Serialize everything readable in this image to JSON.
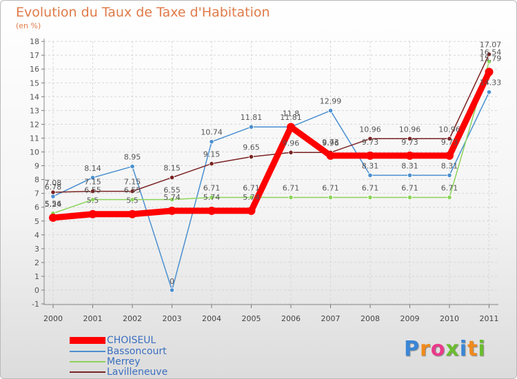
{
  "title": "Evolution du Taux de Taxe d'Habitation",
  "subtitle": "(en %)",
  "logo_text": "Proxiti",
  "chart_data": {
    "type": "line",
    "categories": [
      "2000",
      "2001",
      "2002",
      "2003",
      "2004",
      "2005",
      "2006",
      "2007",
      "2008",
      "2009",
      "2010",
      "2011"
    ],
    "ylim": [
      -1,
      18
    ],
    "yticks": [
      -1,
      0,
      1,
      2,
      3,
      4,
      5,
      6,
      7,
      8,
      9,
      10,
      11,
      12,
      13,
      14,
      15,
      16,
      17,
      18
    ],
    "grid": true,
    "series": [
      {
        "name": "CHOISEUL",
        "color": "#ff0000",
        "values": [
          5.24,
          5.5,
          5.5,
          5.74,
          5.74,
          5.74,
          11.8,
          9.73,
          9.73,
          9.73,
          9.73,
          15.79
        ],
        "labels": [
          "5.24",
          "5.5",
          "5.5",
          "5.74",
          "5.74",
          "5.74",
          "11.8",
          "9.73",
          "9.73",
          "9.73",
          "9.73",
          "15.79"
        ]
      },
      {
        "name": "Bassoncourt",
        "color": "#4a8fd0",
        "values": [
          6.78,
          8.14,
          8.95,
          0,
          10.74,
          11.81,
          11.81,
          12.99,
          8.31,
          8.31,
          8.31,
          14.33
        ],
        "labels": [
          "6.78",
          "8.14",
          "8.95",
          "0",
          "10.74",
          "11.81",
          "11.81",
          "12.99",
          "8.31",
          "8.31",
          "8.31",
          "14.33"
        ]
      },
      {
        "name": "Merrey",
        "color": "#8cd45a",
        "values": [
          5.56,
          6.55,
          6.55,
          6.55,
          6.71,
          6.71,
          6.71,
          6.71,
          6.71,
          6.71,
          6.71,
          16.54
        ],
        "labels": [
          "5.56",
          "6.55",
          "6.55",
          "6.55",
          "6.71",
          "6.71",
          "6.71",
          "6.71",
          "6.71",
          "6.71",
          "6.71",
          "16.54"
        ]
      },
      {
        "name": "Lavilleneuve",
        "color": "#7a2323",
        "values": [
          7.08,
          7.15,
          7.15,
          8.15,
          9.15,
          9.65,
          9.96,
          9.96,
          10.96,
          10.96,
          10.96,
          17.07
        ],
        "labels": [
          "7.08",
          "7.15",
          "7.15",
          "8.15",
          "9.15",
          "9.65",
          "9.96",
          "9.96",
          "10.96",
          "10.96",
          "10.96",
          "17.07"
        ]
      }
    ]
  }
}
